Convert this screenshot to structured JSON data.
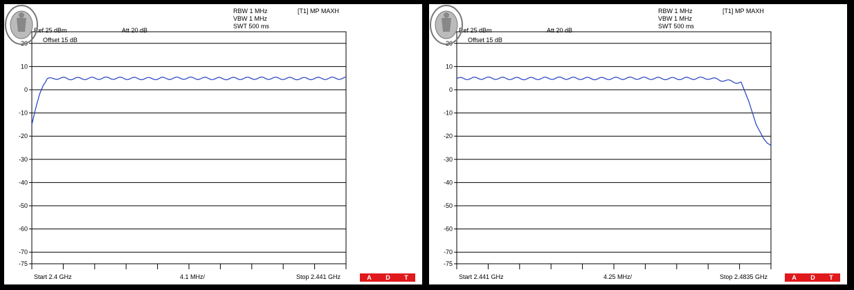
{
  "panels": [
    {
      "header": {
        "rbw": "RBW 1 MHz",
        "vbw": "VBW 1 MHz",
        "swt": "SWT 500 ms",
        "trace": "[T1] MP MAXH",
        "ref": "Ref 25 dBm",
        "att": "Att  20 dB",
        "offset": "Offset 15 dB"
      },
      "footer": {
        "start": "Start 2.4 GHz",
        "div": "4.1 MHz/",
        "stop": "Stop 2.441 GHz"
      },
      "logo": {
        "text": "BUREAU VERITAS",
        "year": "1828",
        "adt": [
          "A",
          "D",
          "T"
        ]
      }
    },
    {
      "header": {
        "rbw": "RBW 1 MHz",
        "vbw": "VBW 1 MHz",
        "swt": "SWT 500 ms",
        "trace": "[T1] MP MAXH",
        "ref": "Ref 25 dBm",
        "att": "Att  20 dB",
        "offset": "Offset 15 dB"
      },
      "footer": {
        "start": "Start 2.441 GHz",
        "div": "4.25 MHz/",
        "stop": "Stop 2.4835 GHz"
      },
      "logo": {
        "text": "BUREAU VERITAS",
        "year": "1828",
        "adt": [
          "A",
          "D",
          "T"
        ]
      }
    }
  ],
  "chart_data": [
    {
      "type": "line",
      "xlabel": "",
      "ylabel": "",
      "xlim": [
        2.4,
        2.441
      ],
      "ylim": [
        -75,
        25
      ],
      "yticks": [
        25,
        20,
        10,
        0,
        -10,
        -20,
        -30,
        -40,
        -50,
        -60,
        -70,
        -75
      ],
      "grid": true,
      "color": "#1f3fbf",
      "series": [
        {
          "x": [
            2.4,
            2.4005,
            2.401,
            2.4015,
            2.402,
            2.403,
            2.405,
            2.41,
            2.415,
            2.42,
            2.425,
            2.43,
            2.435,
            2.441
          ],
          "y": [
            -15,
            -8,
            -2,
            2,
            4.5,
            5,
            4.8,
            5,
            4.8,
            5,
            4.8,
            5,
            4.8,
            5
          ],
          "ripple": 0.5
        }
      ]
    },
    {
      "type": "line",
      "xlabel": "",
      "ylabel": "",
      "xlim": [
        2.441,
        2.4835
      ],
      "ylim": [
        -75,
        25
      ],
      "yticks": [
        25,
        20,
        10,
        0,
        -10,
        -20,
        -30,
        -40,
        -50,
        -60,
        -70,
        -75
      ],
      "grid": true,
      "color": "#1f3fbf",
      "series": [
        {
          "x": [
            2.441,
            2.445,
            2.45,
            2.455,
            2.46,
            2.465,
            2.47,
            2.475,
            2.4795,
            2.4805,
            2.4815,
            2.4825,
            2.483,
            2.4835
          ],
          "y": [
            4.8,
            5,
            4.8,
            5,
            4.8,
            5,
            4.8,
            5,
            3,
            -5,
            -15,
            -21,
            -23,
            -24
          ],
          "ripple": 0.5
        }
      ]
    }
  ]
}
